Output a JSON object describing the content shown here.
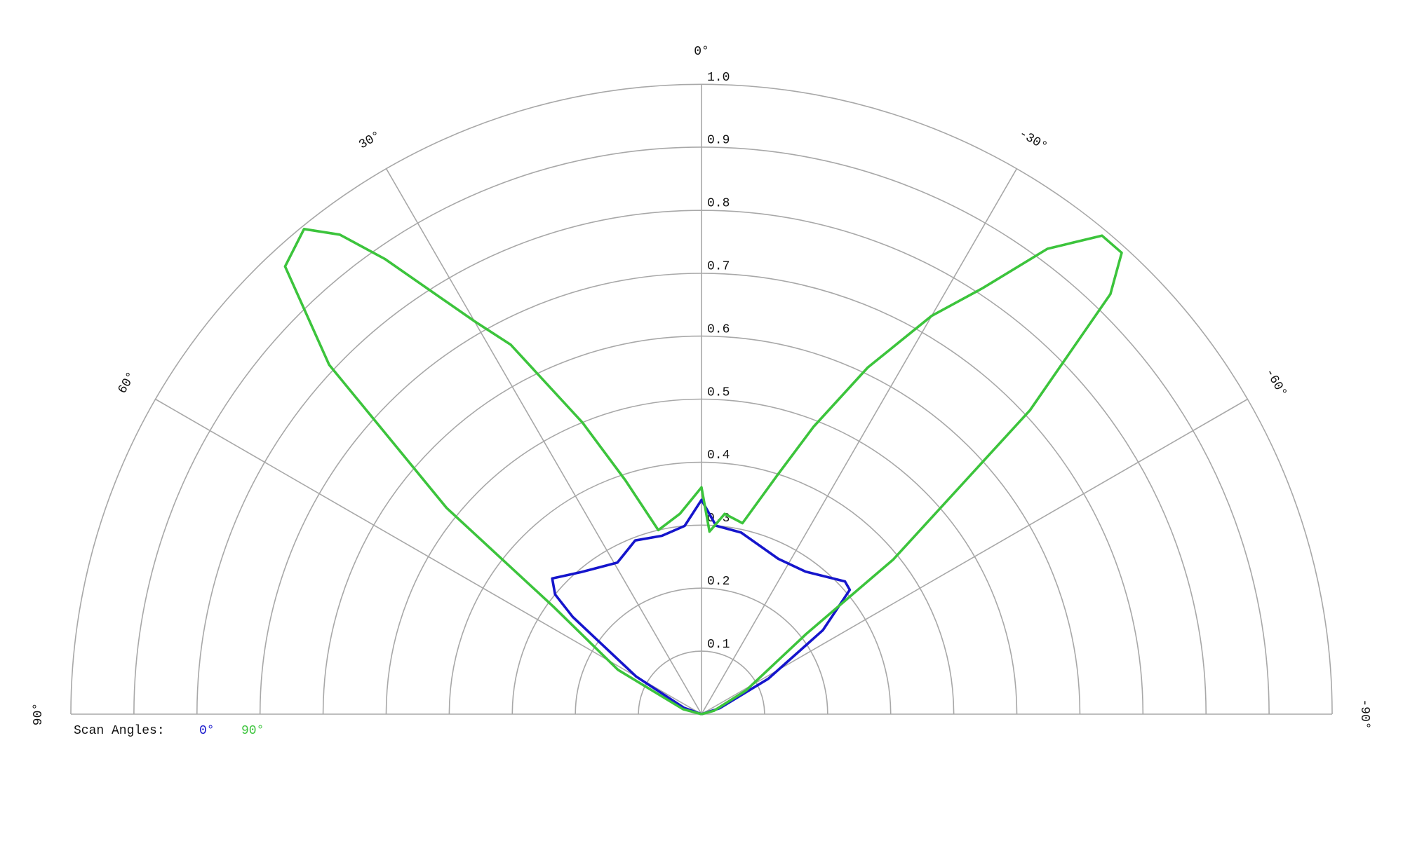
{
  "chart_data": {
    "type": "polar",
    "rlim": [
      0,
      1
    ],
    "rticks": [
      0.1,
      0.2,
      0.3,
      0.4,
      0.5,
      0.6,
      0.7,
      0.8,
      0.9,
      {
        "value": 1,
        "label": "1.0"
      }
    ],
    "thetaticks": [
      {
        "value": 90,
        "label": "90°"
      },
      {
        "value": 60,
        "label": "60°"
      },
      {
        "value": 30,
        "label": "30°"
      },
      {
        "value": 0,
        "label": "0°"
      },
      {
        "value": -30,
        "label": "-30°"
      },
      {
        "value": -60,
        "label": "-60°"
      },
      {
        "value": -90,
        "label": "-90°"
      }
    ],
    "grid": true,
    "legend_title": "Scan Angles:",
    "series": [
      {
        "name": "0°",
        "color": "#1515cc",
        "theta": [
          90,
          70,
          60,
          52.9,
          50.7,
          47.7,
          40.1,
          29,
          20.9,
          12.5,
          5.1,
          0,
          -4.4,
          -12.3,
          -26.3,
          -36.1,
          -47.2,
          -50,
          -55.3,
          -62,
          -72,
          -90
        ],
        "values": [
          0,
          0.03,
          0.12,
          0.256,
          0.3,
          0.32,
          0.295,
          0.275,
          0.295,
          0.29,
          0.3,
          0.34,
          0.3,
          0.295,
          0.275,
          0.28,
          0.31,
          0.307,
          0.234,
          0.12,
          0.03,
          0
        ]
      },
      {
        "name": "90°",
        "color": "#3cc43c",
        "theta": [
          90,
          75,
          62,
          54,
          51,
          46.8,
          42.9,
          39.3,
          37,
          34.8,
          30,
          27.3,
          22.2,
          18,
          13.2,
          6.1,
          0,
          -2.5,
          -6.6,
          -12.1,
          -17.7,
          -21.3,
          -25.6,
          -30,
          -33.4,
          -36.6,
          -39.9,
          -42.3,
          -44.2,
          -47.2,
          -51.1,
          -52.5,
          -62,
          -75,
          -90
        ],
        "values": [
          0,
          0.03,
          0.15,
          0.29,
          0.52,
          0.81,
          0.97,
          0.995,
          0.953,
          0.88,
          0.72,
          0.66,
          0.5,
          0.39,
          0.3,
          0.32,
          0.36,
          0.29,
          0.32,
          0.31,
          0.4,
          0.49,
          0.61,
          0.73,
          0.81,
          0.92,
          0.99,
          0.99,
          0.93,
          0.71,
          0.39,
          0.21,
          0.08,
          0.02,
          0
        ]
      }
    ]
  }
}
